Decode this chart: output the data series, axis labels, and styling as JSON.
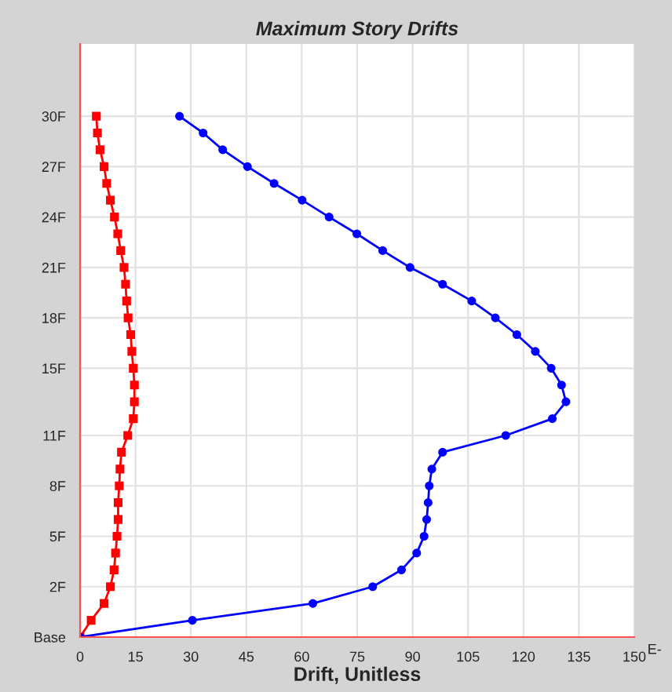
{
  "chart_data": {
    "type": "line",
    "orientation": "horizontal",
    "title": "Maximum Story Drifts",
    "xlabel": "Drift, Unitless",
    "categories": [
      "30F",
      null,
      null,
      "27F",
      null,
      null,
      "24F",
      null,
      null,
      "21F",
      null,
      null,
      "18F",
      null,
      null,
      "15F",
      null,
      null,
      null,
      "11F",
      null,
      null,
      "8F",
      null,
      null,
      "5F",
      null,
      null,
      "2F",
      null,
      null,
      "Base"
    ],
    "series": [
      {
        "color": "#ff0000",
        "marker": "square",
        "values": [
          4.4,
          4.7,
          5.4,
          6.5,
          7.2,
          8.2,
          9.3,
          10.2,
          11.0,
          11.9,
          12.3,
          12.6,
          13.0,
          13.7,
          14.0,
          14.4,
          14.7,
          14.7,
          14.4,
          12.9,
          11.2,
          10.8,
          10.6,
          10.3,
          10.3,
          10.0,
          9.6,
          9.2,
          8.2,
          6.5,
          3.0,
          0
        ]
      },
      {
        "color": "#0000ff",
        "marker": "circle",
        "values": [
          26.9,
          33.3,
          38.6,
          45.3,
          52.5,
          60.1,
          67.4,
          74.9,
          81.9,
          89.3,
          98.1,
          106.0,
          112.4,
          118.2,
          123.2,
          127.5,
          130.3,
          131.5,
          127.8,
          115.2,
          98.1,
          95.2,
          94.5,
          94.2,
          93.8,
          93.1,
          91.1,
          87.0,
          79.2,
          63.0,
          30.4,
          0
        ]
      }
    ],
    "xlim": [
      0,
      150
    ],
    "xticks": [
      0,
      15,
      30,
      45,
      60,
      75,
      90,
      105,
      120,
      135,
      150
    ],
    "annotations": [
      "E-"
    ],
    "grid": true,
    "line_style": "solid"
  }
}
